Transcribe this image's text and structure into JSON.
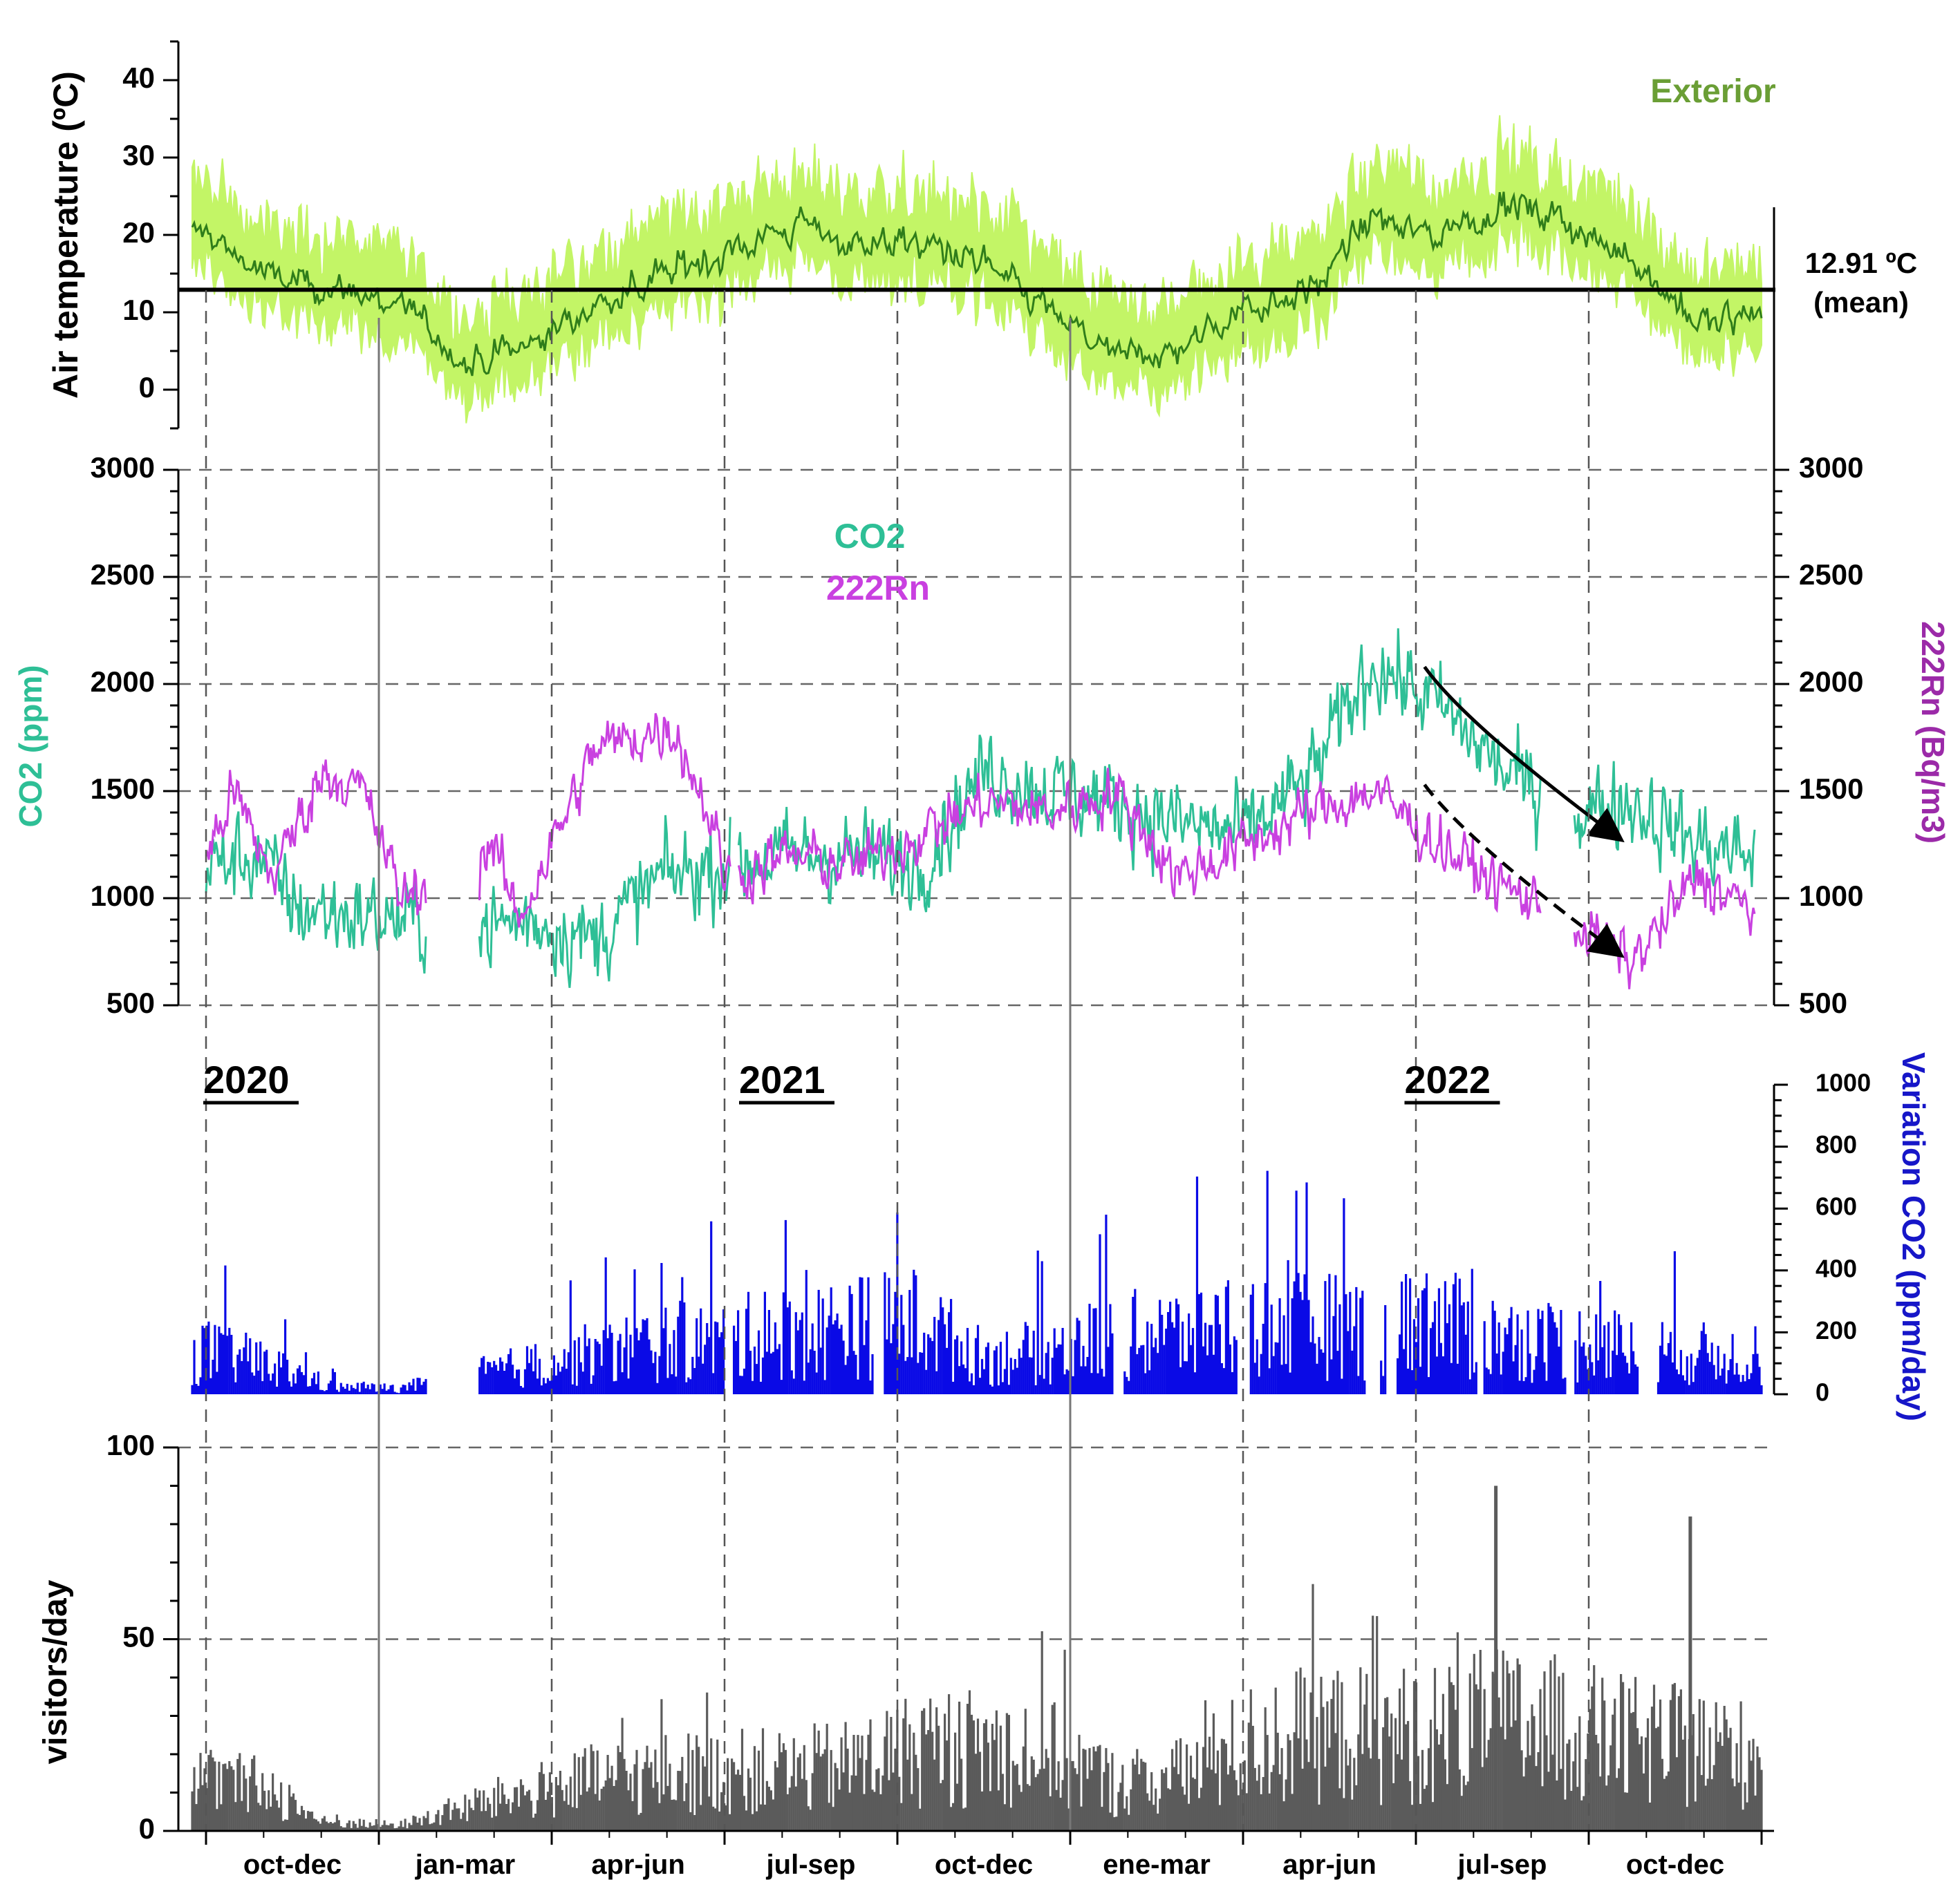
{
  "chart_data": [
    {
      "type": "area",
      "panel": "air-temperature",
      "ylabel": "Air temperature (ºC)",
      "ylim": [
        -5,
        45
      ],
      "yticks": [
        0,
        10,
        20,
        30,
        40
      ],
      "series": [
        {
          "name": "Exterior",
          "color": "#2f7d1a",
          "anchors": [
            [
              0,
              20
            ],
            [
              0.5,
              14
            ],
            [
              1,
              13
            ],
            [
              1.5,
              11
            ],
            [
              2,
              3
            ],
            [
              2.5,
              6
            ],
            [
              3,
              11
            ],
            [
              3.5,
              15
            ],
            [
              4,
              18
            ],
            [
              4.5,
              21
            ],
            [
              5,
              19
            ],
            [
              5.5,
              19
            ],
            [
              6,
              16
            ],
            [
              6.5,
              10
            ],
            [
              7,
              4
            ],
            [
              7.5,
              5
            ],
            [
              8,
              11
            ],
            [
              8.5,
              13
            ],
            [
              9,
              22
            ],
            [
              9.5,
              20
            ],
            [
              10,
              24
            ],
            [
              10.5,
              21
            ],
            [
              11,
              17
            ],
            [
              11.5,
              8
            ],
            [
              12,
              10
            ]
          ]
        }
      ],
      "mean_line": {
        "value": 12.91,
        "label_line1": "12.91 ºC",
        "label_line2": "(mean)"
      },
      "colors": {
        "range_band": "#c3f566",
        "daily_mean": "#2f7d1a",
        "mean_line": "#000000"
      }
    },
    {
      "type": "line",
      "panel": "co2-radon",
      "ylabel_left": "CO2 (ppm)",
      "ylabel_right": "222Rn (Bq/m3)",
      "ylim": [
        500,
        3000
      ],
      "yticks": [
        500,
        1000,
        1500,
        2000,
        2500,
        3000
      ],
      "gaps": [
        [
          1.7,
          2.1
        ],
        [
          4.05,
          4.1
        ],
        [
          10.3,
          10.55
        ]
      ],
      "series": [
        {
          "name": "CO2",
          "color": "#2ebf96",
          "anchors": [
            [
              0,
              1150
            ],
            [
              0.4,
              1200
            ],
            [
              0.7,
              950
            ],
            [
              1,
              930
            ],
            [
              1.5,
              900
            ],
            [
              2,
              850
            ],
            [
              2.5,
              900
            ],
            [
              3,
              800
            ],
            [
              3.5,
              1100
            ],
            [
              4,
              1150
            ],
            [
              4.5,
              1200
            ],
            [
              5,
              1200
            ],
            [
              5.5,
              1150
            ],
            [
              6,
              1600
            ],
            [
              6.5,
              1500
            ],
            [
              7,
              1450
            ],
            [
              7.5,
              1350
            ],
            [
              8,
              1300
            ],
            [
              8.5,
              1550
            ],
            [
              9,
              2100
            ],
            [
              9.5,
              1900
            ],
            [
              10,
              1600
            ],
            [
              10.5,
              1400
            ],
            [
              11,
              1450
            ],
            [
              11.5,
              1250
            ],
            [
              12,
              1200
            ]
          ]
        },
        {
          "name": "222Rn",
          "color": "#c940e0",
          "anchors": [
            [
              0,
              1200
            ],
            [
              0.2,
              1500
            ],
            [
              0.5,
              1100
            ],
            [
              0.9,
              1600
            ],
            [
              1.2,
              1500
            ],
            [
              1.5,
              1000
            ],
            [
              1.8,
              1100
            ],
            [
              2.2,
              1250
            ],
            [
              2.4,
              900
            ],
            [
              3,
              1700
            ],
            [
              3.6,
              1800
            ],
            [
              3.9,
              1350
            ],
            [
              4,
              1100
            ],
            [
              4.5,
              1200
            ],
            [
              5,
              1150
            ],
            [
              6,
              1450
            ],
            [
              6.5,
              1400
            ],
            [
              7,
              1500
            ],
            [
              7.5,
              1100
            ],
            [
              8,
              1250
            ],
            [
              8.5,
              1400
            ],
            [
              9,
              1500
            ],
            [
              9.5,
              1250
            ],
            [
              10,
              1050
            ],
            [
              10.5,
              900
            ],
            [
              11,
              700
            ],
            [
              11.5,
              1100
            ],
            [
              12,
              900
            ]
          ]
        }
      ],
      "annotations": [
        {
          "style": "solid",
          "from": [
            9.4,
            2080
          ],
          "to": [
            10.9,
            1280
          ]
        },
        {
          "style": "dashed",
          "from": [
            9.4,
            1530
          ],
          "to": [
            10.9,
            740
          ]
        }
      ]
    },
    {
      "type": "bar",
      "panel": "co2-variation",
      "ylabel": "Variation CO2 (ppm/day)",
      "ylim": [
        0,
        1000
      ],
      "yticks": [
        0,
        200,
        400,
        600,
        800,
        1000
      ],
      "gaps": [
        [
          1.7,
          2.1
        ],
        [
          4.0,
          4.07
        ],
        [
          5.15,
          5.23
        ],
        [
          7.0,
          7.08
        ],
        [
          7.95,
          8.05
        ],
        [
          8.95,
          9.05
        ],
        [
          9.11,
          9.18
        ],
        [
          9.8,
          9.85
        ],
        [
          10.5,
          10.55
        ],
        [
          11.05,
          11.2
        ]
      ],
      "series": [
        {
          "name": "Variation CO2",
          "color": "#0a0ae6",
          "anchors": [
            [
              0,
              180
            ],
            [
              0.5,
              120
            ],
            [
              1,
              30
            ],
            [
              1.5,
              25
            ],
            [
              2,
              80
            ],
            [
              2.5,
              120
            ],
            [
              3,
              170
            ],
            [
              3.5,
              210
            ],
            [
              4,
              230
            ],
            [
              4.5,
              250
            ],
            [
              5,
              280
            ],
            [
              5.5,
              300
            ],
            [
              6,
              150
            ],
            [
              6.5,
              180
            ],
            [
              7,
              240
            ],
            [
              7.5,
              250
            ],
            [
              8,
              300
            ],
            [
              8.5,
              280
            ],
            [
              9,
              280
            ],
            [
              9.5,
              300
            ],
            [
              10,
              230
            ],
            [
              10.5,
              220
            ],
            [
              11,
              190
            ],
            [
              11.5,
              170
            ],
            [
              12,
              150
            ]
          ]
        }
      ]
    },
    {
      "type": "bar",
      "panel": "visitors",
      "ylabel": "visitors/day",
      "ylim": [
        0,
        100
      ],
      "yticks": [
        0,
        50,
        100
      ],
      "series": [
        {
          "name": "visitors",
          "color": "#5b5b5b",
          "anchors": [
            [
              0,
              17
            ],
            [
              0.5,
              14
            ],
            [
              0.9,
              3
            ],
            [
              1.5,
              2
            ],
            [
              2,
              8
            ],
            [
              2.5,
              13
            ],
            [
              3,
              17
            ],
            [
              3.5,
              19
            ],
            [
              4,
              20
            ],
            [
              4.5,
              20
            ],
            [
              5,
              22
            ],
            [
              5.5,
              28
            ],
            [
              6,
              28
            ],
            [
              6.5,
              27
            ],
            [
              7,
              16
            ],
            [
              7.5,
              18
            ],
            [
              8,
              28
            ],
            [
              8.5,
              33
            ],
            [
              9,
              32
            ],
            [
              9.5,
              33
            ],
            [
              10,
              36
            ],
            [
              10.5,
              34
            ],
            [
              11,
              30
            ],
            [
              11.5,
              28
            ],
            [
              12,
              25
            ]
          ]
        }
      ],
      "spikes": [
        [
          9.95,
          90
        ],
        [
          11.45,
          82
        ]
      ]
    }
  ],
  "labels": {
    "temp_ylabel": "Air temperature (ºC)",
    "temp_legend": "Exterior",
    "mean_value": "12.91 ºC",
    "mean_word": "(mean)",
    "co2_ylabel": "CO2 (ppm)",
    "co2_legend": "CO2",
    "rn_legend": "222Rn",
    "rn_ylabel": "222Rn (Bq/m3)",
    "var_ylabel": "Variation CO2 (ppm/day)",
    "vis_ylabel": "visitors/day",
    "years": [
      {
        "label": "2020",
        "q": 0.0
      },
      {
        "label": "2021",
        "q": 3.1
      },
      {
        "label": "2022",
        "q": 6.95
      }
    ],
    "quarters": [
      "oct-dec",
      "jan-mar",
      "apr-jun",
      "jul-sep",
      "oct-dec",
      "ene-mar",
      "apr-jun",
      "jul-sep",
      "oct-dec"
    ]
  },
  "x_axis": {
    "unit": "quarter index from 2020 oct-dec",
    "xlim": [
      -0.08,
      9.0
    ],
    "dashed_dividers": [
      0,
      2,
      3,
      4,
      6,
      7,
      8
    ],
    "solid_dividers": [
      1,
      5
    ]
  }
}
